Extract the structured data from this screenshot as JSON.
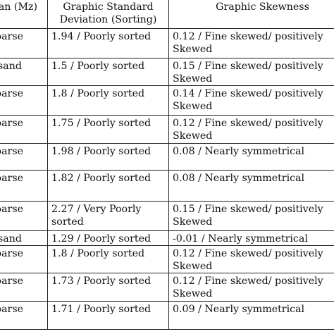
{
  "table": {
    "headers": [
      [
        "an (Mz)"
      ],
      [
        "Graphic Standard",
        "Deviation (Sorting)"
      ],
      [
        "Graphic Skewness"
      ]
    ],
    "rows": [
      {
        "mean": "oarse",
        "sorting": [
          "1.94 / Poorly sorted"
        ],
        "skewness": [
          "0.12 / Fine skewed/ positively",
          "Skewed"
        ]
      },
      {
        "mean": "sand",
        "sorting": [
          "1.5 / Poorly sorted"
        ],
        "skewness": [
          "0.15 / Fine skewed/ positively",
          "Skewed"
        ]
      },
      {
        "mean": "oarse",
        "sorting": [
          "1.8 / Poorly sorted"
        ],
        "skewness": [
          "0.14 / Fine skewed/ positively",
          "Skewed"
        ]
      },
      {
        "mean": "oarse",
        "sorting": [
          "1.75 / Poorly sorted"
        ],
        "skewness": [
          "0.12 / Fine skewed/ positively",
          "Skewed"
        ]
      },
      {
        "mean": "oarse",
        "sorting": [
          "1.98 / Poorly sorted"
        ],
        "skewness": [
          "0.08 / Nearly symmetrical"
        ]
      },
      {
        "mean": "oarse",
        "sorting": [
          "1.82 / Poorly sorted"
        ],
        "skewness": [
          "0.08 / Nearly symmetrical"
        ]
      },
      {
        "mean": "oarse",
        "sorting": [
          "2.27 / Very Poorly",
          "sorted"
        ],
        "skewness": [
          "0.15 / Fine skewed/ positively",
          "Skewed"
        ]
      },
      {
        "mean": "sand",
        "sorting": [
          "1.29 / Poorly sorted"
        ],
        "skewness": [
          "-0.01 / Nearly symmetrical"
        ]
      },
      {
        "mean": "oarse",
        "sorting": [
          "1.8 / Poorly sorted"
        ],
        "skewness": [
          "0.12 / Fine skewed/ positively",
          "Skewed"
        ]
      },
      {
        "mean": "oarse",
        "sorting": [
          "1.73 / Poorly sorted"
        ],
        "skewness": [
          "0.12 / Fine skewed/ positively",
          "Skewed"
        ]
      },
      {
        "mean": "oarse",
        "sorting": [
          "1.71 / Poorly sorted"
        ],
        "skewness": [
          "0.09 / Nearly symmetrical"
        ]
      }
    ]
  }
}
